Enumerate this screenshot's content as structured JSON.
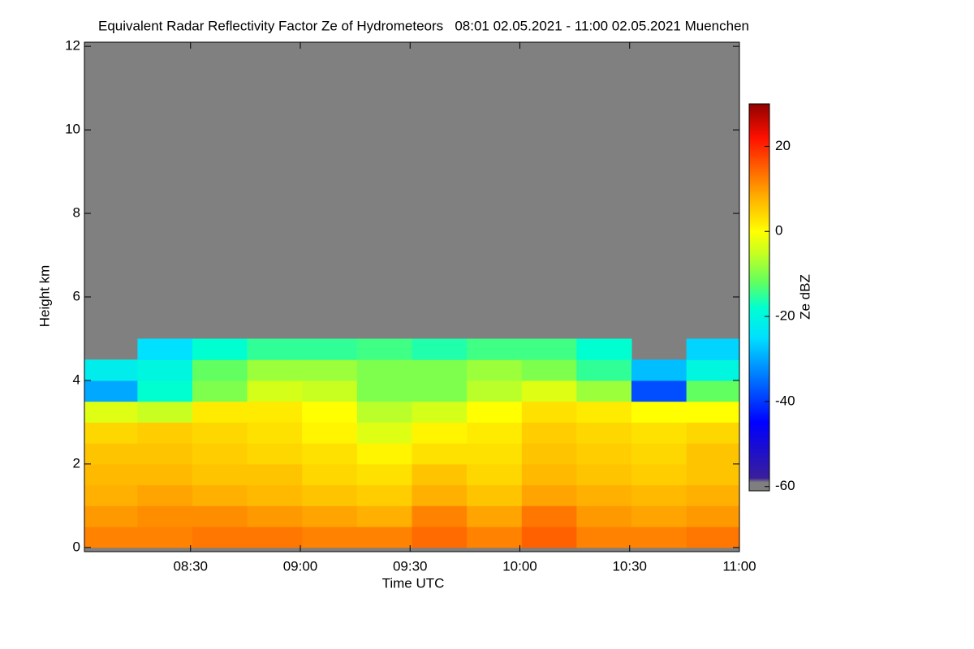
{
  "chart_data": {
    "type": "heatmap",
    "title": "Equivalent Radar Reflectivity Factor Ze of Hydrometeors   08:01 02.05.2021 - 11:00 02.05.2021 Muenchen",
    "x_label": "Time UTC",
    "y_label": "Height km",
    "xlim": [
      481,
      660
    ],
    "xticks": [
      {
        "value": 510,
        "label": "08:30"
      },
      {
        "value": 540,
        "label": "09:00"
      },
      {
        "value": 570,
        "label": "09:30"
      },
      {
        "value": 600,
        "label": "10:00"
      },
      {
        "value": 630,
        "label": "10:30"
      },
      {
        "value": 660,
        "label": "11:00"
      }
    ],
    "ylim": [
      -0.1,
      12.1
    ],
    "yticks": [
      0,
      2,
      4,
      6,
      8,
      10,
      12
    ],
    "x": [
      488,
      503,
      518,
      533,
      548,
      563,
      578,
      593,
      608,
      623,
      638,
      653
    ],
    "y": [
      0.25,
      0.75,
      1.25,
      1.75,
      2.25,
      2.75,
      3.25,
      3.75,
      4.25,
      4.75
    ],
    "values": [
      [
        12,
        12,
        13,
        13,
        12,
        12,
        14,
        12,
        15,
        12,
        12,
        13
      ],
      [
        10,
        11,
        11,
        10,
        9,
        8,
        12,
        9,
        13,
        10,
        9,
        10
      ],
      [
        8,
        9,
        8,
        7,
        6,
        5,
        8,
        6,
        9,
        8,
        7,
        8
      ],
      [
        7,
        7,
        6,
        6,
        4,
        3,
        6,
        4,
        7,
        6,
        5,
        6
      ],
      [
        6,
        6,
        5,
        4,
        3,
        1,
        3,
        3,
        6,
        5,
        4,
        6
      ],
      [
        4,
        5,
        4,
        3,
        1,
        -3,
        1,
        2,
        5,
        4,
        3,
        4
      ],
      [
        -3,
        -5,
        2,
        2,
        0,
        -6,
        -4,
        0,
        3,
        2,
        0,
        0
      ],
      [
        -30,
        -18,
        -10,
        -4,
        -5,
        -10,
        -10,
        -6,
        -3,
        -8,
        -38,
        -12
      ],
      [
        -22,
        -20,
        -12,
        -8,
        -8,
        -10,
        -10,
        -8,
        -10,
        -15,
        -28,
        -20
      ],
      [
        null,
        -25,
        -18,
        -15,
        -15,
        -14,
        -16,
        -14,
        -14,
        -18,
        null,
        -26
      ]
    ],
    "colorbar": {
      "label": "Ze dBZ",
      "clim": [
        -61,
        30
      ],
      "ticks": [
        20,
        0,
        -20,
        -40,
        -60
      ]
    }
  }
}
